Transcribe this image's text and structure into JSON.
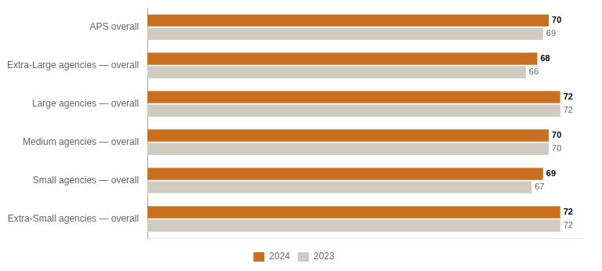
{
  "chart_data": {
    "type": "bar",
    "orientation": "horizontal",
    "categories": [
      "APS overall",
      "Extra-Large agencies — overall",
      "Large agencies — overall",
      "Medium agencies — overall",
      "Small agencies — overall",
      "Extra-Small agencies — overall"
    ],
    "series": [
      {
        "name": "2024",
        "color": "#C87020",
        "values": [
          70,
          68,
          72,
          70,
          69,
          72
        ]
      },
      {
        "name": "2023",
        "color": "#D0CBC0",
        "values": [
          69,
          66,
          72,
          70,
          67,
          72
        ]
      }
    ],
    "xlim": [
      0,
      76
    ],
    "grid": false,
    "legend": "bottom",
    "data_labels": true,
    "tick_labels": "y"
  }
}
